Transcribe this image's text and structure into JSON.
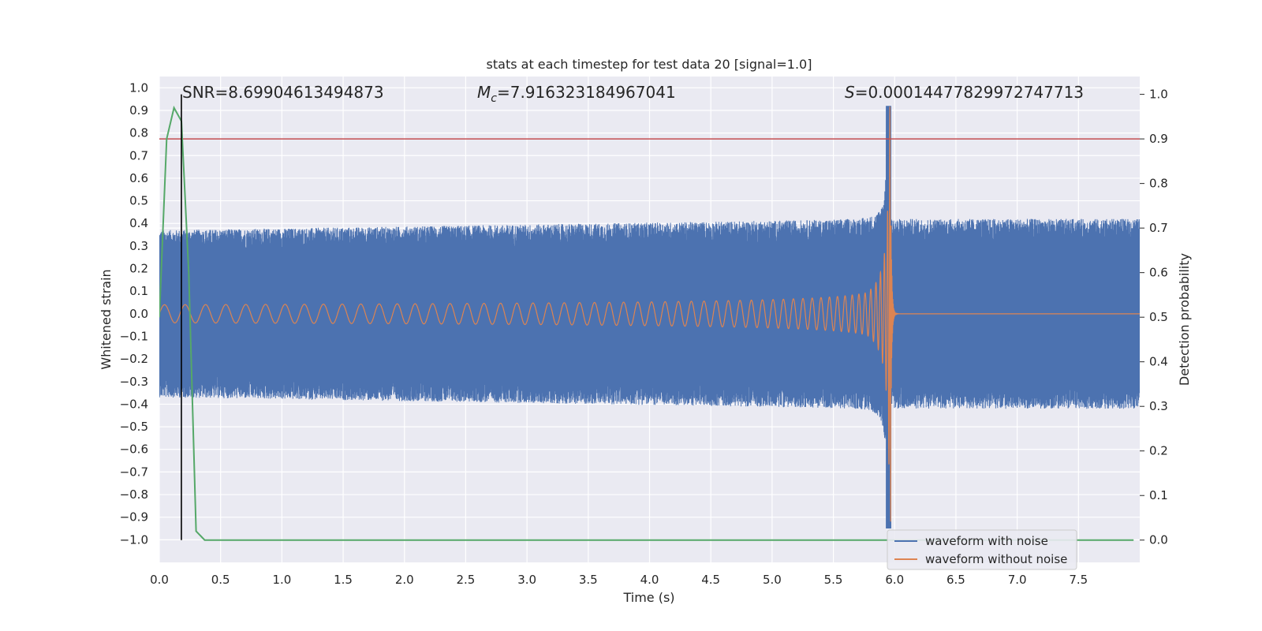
{
  "chart_data": {
    "type": "line",
    "title": "stats at each timestep for test data 20 [signal=1.0]",
    "xlabel": "Time (s)",
    "ylabel": "Whitened strain",
    "y2label": "Detection probability",
    "xlim": [
      0.0,
      8.0
    ],
    "ylim": [
      -1.1,
      1.05
    ],
    "y2lim": [
      -0.05,
      1.04
    ],
    "x_ticks": [
      0.0,
      0.5,
      1.0,
      1.5,
      2.0,
      2.5,
      3.0,
      3.5,
      4.0,
      4.5,
      5.0,
      5.5,
      6.0,
      6.5,
      7.0,
      7.5
    ],
    "y_ticks": [
      1.0,
      0.9,
      0.8,
      0.7,
      0.6,
      0.5,
      0.4,
      0.3,
      0.2,
      0.1,
      0.0,
      -0.1,
      -0.2,
      -0.3,
      -0.4,
      -0.5,
      -0.6,
      -0.7,
      -0.8,
      -0.9,
      -1.0
    ],
    "y2_ticks": [
      1.0,
      0.9,
      0.8,
      0.7,
      0.6,
      0.5,
      0.4,
      0.3,
      0.2,
      0.1,
      0.0
    ],
    "grid": true,
    "legend_position": "bottom-right",
    "annotations": {
      "snr": "SNR=8.69904613494873",
      "mc_symbol": "M",
      "mc_sub": "c",
      "mc_value": "=7.916323184967041",
      "s_symbol": "S",
      "s_value": "=0.00014477829972747713"
    },
    "series": [
      {
        "name": "waveform with noise",
        "axis": "left",
        "color": "#4c72b0",
        "style": "dense noisy oscillation",
        "noise_envelope": 0.42,
        "peak_time": 5.95,
        "peak_value": 0.92,
        "min_value": -0.95
      },
      {
        "name": "waveform without noise",
        "axis": "left",
        "color": "#dd8452",
        "style": "chirp",
        "start_amplitude": 0.04,
        "merger_time": 5.97,
        "merger_amplitude": 0.92,
        "post_merger_value": 0.0
      },
      {
        "name": "",
        "axis": "right",
        "color": "#55a868",
        "x": [
          0.0,
          0.06,
          0.12,
          0.18,
          0.24,
          0.3,
          0.37,
          7.95
        ],
        "y": [
          0.5,
          0.9,
          0.97,
          0.94,
          0.6,
          0.02,
          0.0,
          0.0
        ]
      }
    ],
    "threshold": {
      "axis": "right",
      "value": 0.9,
      "color": "#c44e52"
    },
    "marker_line": {
      "x": 0.18,
      "color": "#000000"
    }
  }
}
